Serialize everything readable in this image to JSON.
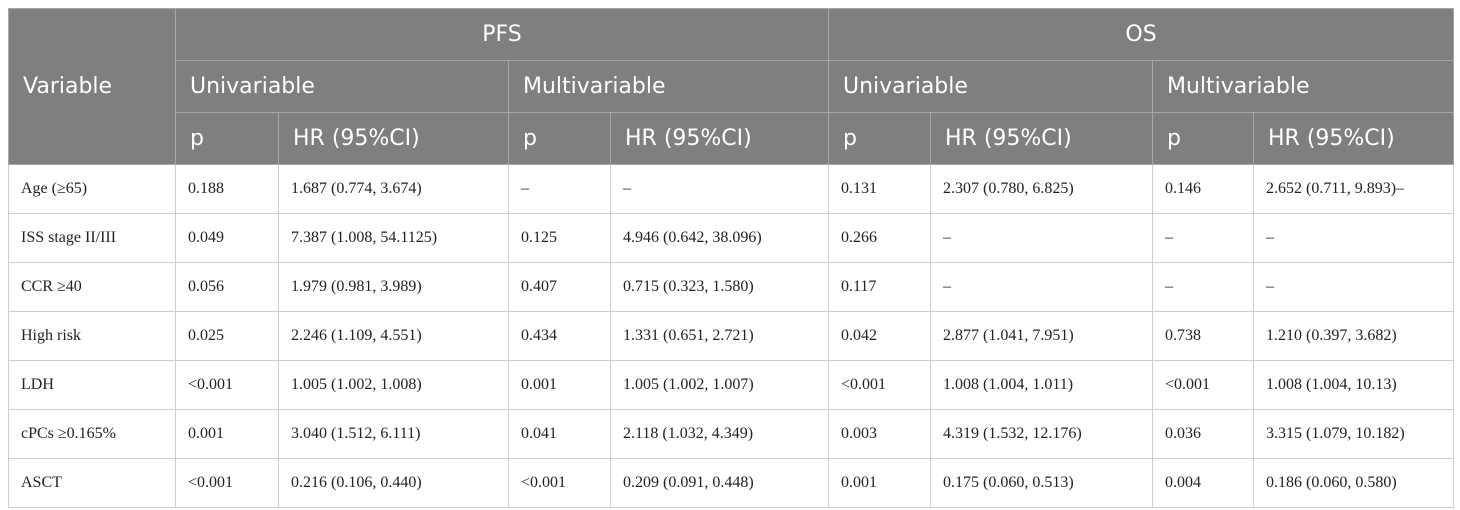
{
  "table": {
    "header": {
      "variable": "Variable",
      "groups": [
        "PFS",
        "OS"
      ],
      "subgroups": [
        "Univariable",
        "Multivariable",
        "Univariable",
        "Multivariable"
      ],
      "columns": [
        "p",
        "HR (95%CI)",
        "p",
        "HR (95%CI)",
        "p",
        "HR (95%CI)",
        "p",
        "HR (95%CI)"
      ]
    },
    "rows": [
      [
        "Age (≥65)",
        "0.188",
        "1.687 (0.774, 3.674)",
        "–",
        "–",
        "0.131",
        "2.307 (0.780, 6.825)",
        "0.146",
        "2.652 (0.711, 9.893)–"
      ],
      [
        "ISS stage II/III",
        "0.049",
        "7.387 (1.008, 54.1125)",
        "0.125",
        "4.946 (0.642, 38.096)",
        "0.266",
        "–",
        "–",
        "–"
      ],
      [
        "CCR ≥40",
        "0.056",
        "1.979 (0.981, 3.989)",
        "0.407",
        "0.715 (0.323, 1.580)",
        "0.117",
        "–",
        "–",
        "–"
      ],
      [
        "High risk",
        "0.025",
        "2.246 (1.109, 4.551)",
        "0.434",
        "1.331 (0.651, 2.721)",
        "0.042",
        "2.877 (1.041, 7.951)",
        "0.738",
        "1.210 (0.397, 3.682)"
      ],
      [
        "LDH",
        "<0.001",
        "1.005 (1.002, 1.008)",
        "0.001",
        "1.005 (1.002, 1.007)",
        "<0.001",
        "1.008 (1.004, 1.011)",
        "<0.001",
        "1.008 (1.004, 10.13)"
      ],
      [
        "cPCs ≥0.165%",
        "0.001",
        "3.040 (1.512, 6.111)",
        "0.041",
        "2.118 (1.032, 4.349)",
        "0.003",
        "4.319 (1.532, 12.176)",
        "0.036",
        "3.315 (1.079, 10.182)"
      ],
      [
        "ASCT",
        "<0.001",
        "0.216 (0.106, 0.440)",
        "<0.001",
        "0.209 (0.091, 0.448)",
        "0.001",
        "0.175 (0.060, 0.513)",
        "0.004",
        "0.186 (0.060, 0.580)"
      ]
    ]
  }
}
